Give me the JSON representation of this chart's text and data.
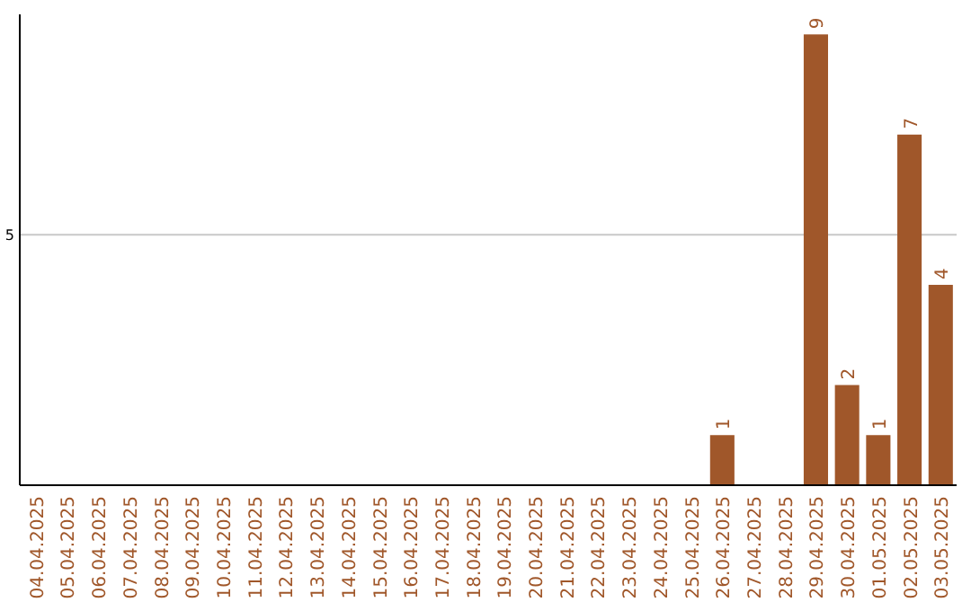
{
  "chart_data": {
    "type": "bar",
    "categories": [
      "04.04.2025",
      "05.04.2025",
      "06.04.2025",
      "07.04.2025",
      "08.04.2025",
      "09.04.2025",
      "10.04.2025",
      "11.04.2025",
      "12.04.2025",
      "13.04.2025",
      "14.04.2025",
      "15.04.2025",
      "16.04.2025",
      "17.04.2025",
      "18.04.2025",
      "19.04.2025",
      "20.04.2025",
      "21.04.2025",
      "22.04.2025",
      "23.04.2025",
      "24.04.2025",
      "25.04.2025",
      "26.04.2025",
      "27.04.2025",
      "28.04.2025",
      "29.04.2025",
      "30.04.2025",
      "01.05.2025",
      "02.05.2025",
      "03.05.2025"
    ],
    "values": [
      null,
      null,
      null,
      null,
      null,
      null,
      null,
      null,
      null,
      null,
      null,
      null,
      null,
      null,
      null,
      null,
      null,
      null,
      null,
      null,
      null,
      null,
      1,
      null,
      null,
      9,
      2,
      1,
      7,
      4
    ],
    "data_labels": true,
    "color": "#a0572a",
    "ylim": [
      0,
      9.4
    ],
    "yticks": [
      5
    ],
    "grid": "y"
  }
}
